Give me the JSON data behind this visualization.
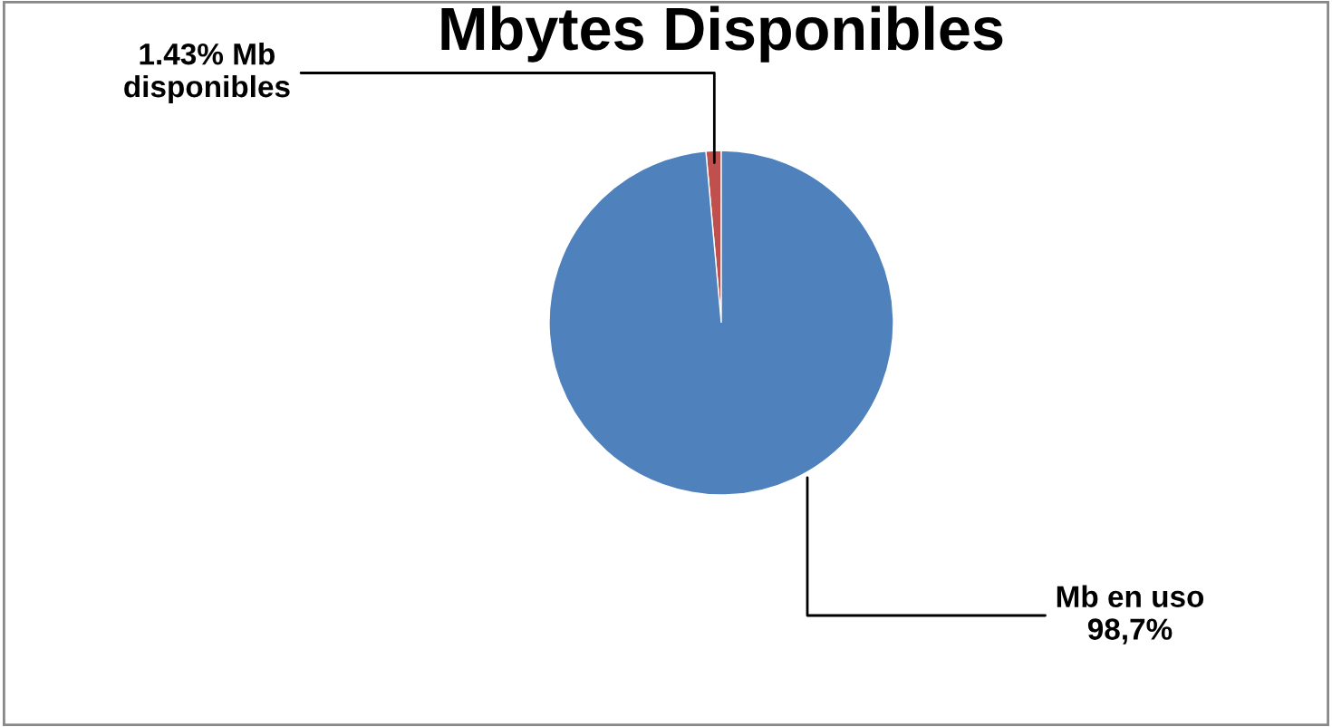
{
  "chart_data": {
    "type": "pie",
    "title": "Mbytes Disponibles",
    "categories": [
      "1.43% Mb\ndisponibles",
      "Mb en uso\n98,7%"
    ],
    "values": [
      1.43,
      98.7
    ],
    "colors": [
      "#c0504d",
      "#4f81bd"
    ],
    "legend": false
  }
}
